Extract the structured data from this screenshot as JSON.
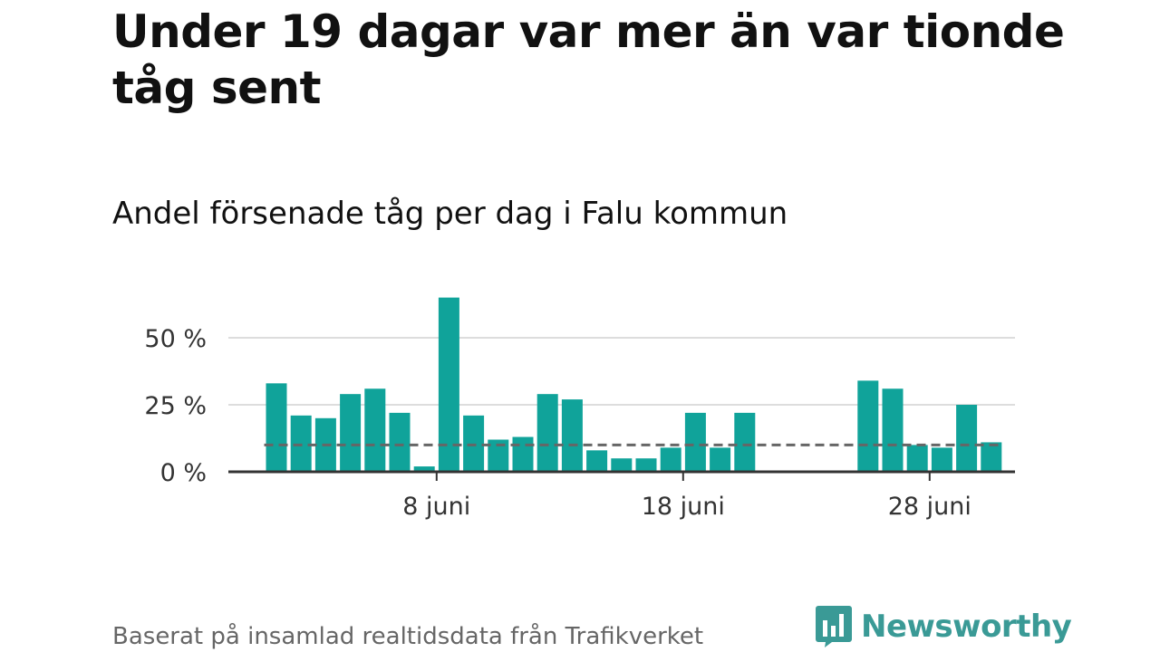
{
  "title": "Under 19 dagar var mer än var tionde tåg sent",
  "subtitle": "Andel försenade tåg per dag i Falu kommun",
  "source": "Baserat på insamlad realtidsdata från Trafikverket",
  "brand": {
    "name": "Newsworthy",
    "logo_icon": "bar-chart-speech-bubble-icon",
    "color": "#3a9a96"
  },
  "colors": {
    "bar": "#10a39a",
    "reference_line": "#666666",
    "grid": "#dddddd",
    "axis": "#333333"
  },
  "chart_data": {
    "type": "bar",
    "x_start_day": 1,
    "x_unit": "juni",
    "ylim": [
      0,
      70
    ],
    "y_ticks": [
      0,
      25,
      50
    ],
    "y_tick_labels": [
      "0 %",
      "25 %",
      "50 %"
    ],
    "x_ticks": [
      8,
      18,
      28
    ],
    "x_tick_labels": [
      "8 juni",
      "18 juni",
      "28 juni"
    ],
    "reference_line": 10,
    "grid": true,
    "values": [
      33,
      21,
      20,
      29,
      31,
      22,
      2,
      65,
      21,
      12,
      13,
      29,
      27,
      8,
      5,
      5,
      9,
      22,
      9,
      22,
      null,
      null,
      null,
      null,
      34,
      31,
      10,
      9,
      25,
      11
    ]
  }
}
